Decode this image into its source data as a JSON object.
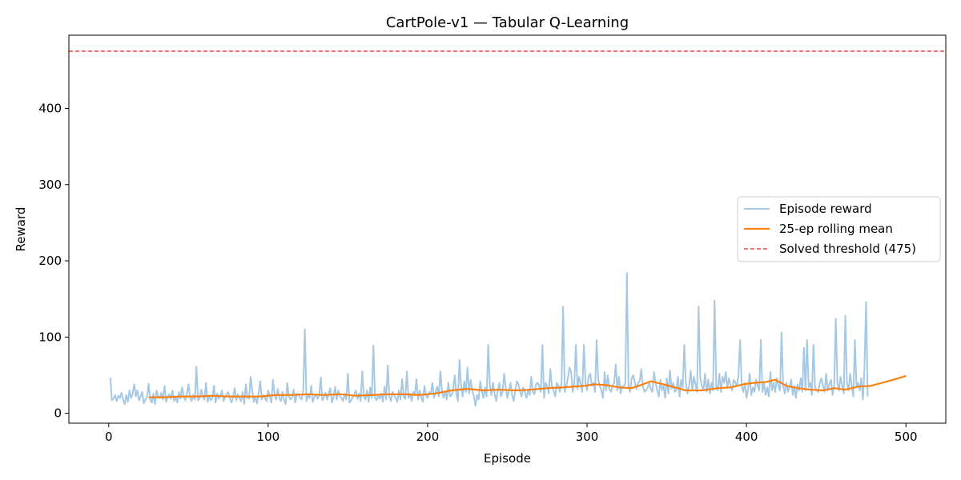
{
  "chart_data": {
    "type": "line",
    "title": "CartPole-v1 — Tabular Q-Learning",
    "xlabel": "Episode",
    "ylabel": "Reward",
    "xlim": [
      -25,
      525
    ],
    "ylim": [
      -13,
      496
    ],
    "xticks": [
      0,
      100,
      200,
      300,
      400,
      500
    ],
    "yticks": [
      0,
      100,
      200,
      300,
      400
    ],
    "grid": false,
    "legend_position": "center-right",
    "threshold": {
      "name": "Solved threshold (475)",
      "value": 475,
      "color": "#e31a1c"
    },
    "series": [
      {
        "name": "Episode reward",
        "color": "#a6c8e3",
        "x_start": 1,
        "values": [
          47,
          17,
          19,
          24,
          16,
          23,
          20,
          27,
          18,
          12,
          24,
          15,
          30,
          20,
          26,
          38,
          22,
          30,
          17,
          22,
          28,
          13,
          18,
          21,
          39,
          18,
          14,
          26,
          12,
          30,
          22,
          20,
          27,
          18,
          36,
          15,
          22,
          25,
          19,
          30,
          16,
          21,
          14,
          28,
          19,
          34,
          22,
          17,
          25,
          38,
          21,
          16,
          24,
          18,
          61,
          17,
          20,
          31,
          22,
          18,
          40,
          15,
          23,
          17,
          20,
          36,
          14,
          26,
          19,
          23,
          30,
          16,
          21,
          25,
          28,
          19,
          14,
          22,
          33,
          17,
          25,
          20,
          16,
          28,
          12,
          38,
          20,
          19,
          48,
          30,
          15,
          22,
          13,
          26,
          42,
          18,
          24,
          20,
          16,
          30,
          22,
          14,
          44,
          25,
          18,
          32,
          20,
          16,
          28,
          17,
          12,
          40,
          22,
          18,
          21,
          31,
          14,
          26,
          25,
          20,
          18,
          30,
          110,
          16,
          24,
          20,
          36,
          15,
          22,
          24,
          19,
          23,
          47,
          17,
          21,
          27,
          18,
          26,
          33,
          14,
          21,
          35,
          18,
          30,
          22,
          20,
          16,
          26,
          18,
          52,
          14,
          17,
          21,
          25,
          30,
          19,
          26,
          16,
          55,
          22,
          18,
          30,
          15,
          34,
          20,
          89,
          21,
          17,
          24,
          19,
          26,
          15,
          35,
          18,
          63,
          22,
          16,
          28,
          24,
          20,
          15,
          30,
          18,
          45,
          22,
          19,
          55,
          20,
          26,
          16,
          28,
          24,
          45,
          18,
          30,
          21,
          15,
          36,
          24,
          20,
          28,
          26,
          40,
          20,
          28,
          35,
          22,
          55,
          30,
          20,
          28,
          18,
          40,
          22,
          24,
          30,
          50,
          26,
          16,
          70,
          36,
          22,
          42,
          28,
          60,
          26,
          44,
          30,
          22,
          10,
          24,
          18,
          42,
          30,
          20,
          34,
          22,
          90,
          38,
          24,
          40,
          26,
          16,
          30,
          40,
          22,
          28,
          52,
          34,
          20,
          30,
          40,
          24,
          16,
          30,
          42,
          38,
          28,
          22,
          34,
          28,
          20,
          30,
          24,
          48,
          28,
          25,
          38,
          40,
          36,
          28,
          90,
          20,
          40,
          36,
          26,
          58,
          34,
          30,
          22,
          40,
          36,
          28,
          40,
          140,
          28,
          36,
          46,
          60,
          54,
          28,
          40,
          90,
          32,
          48,
          38,
          28,
          90,
          40,
          30,
          48,
          52,
          36,
          40,
          28,
          96,
          44,
          36,
          30,
          20,
          54,
          30,
          50,
          32,
          28,
          36,
          40,
          64,
          30,
          48,
          26,
          36,
          34,
          40,
          184,
          36,
          28,
          46,
          50,
          40,
          32,
          40,
          42,
          58,
          36,
          28,
          30,
          34,
          40,
          32,
          28,
          54,
          40,
          30,
          22,
          44,
          30,
          36,
          20,
          46,
          26,
          56,
          32,
          40,
          28,
          30,
          48,
          22,
          44,
          34,
          90,
          40,
          26,
          36,
          56,
          30,
          48,
          38,
          28,
          140,
          46,
          36,
          30,
          52,
          28,
          44,
          26,
          40,
          30,
          148,
          36,
          30,
          52,
          28,
          48,
          40,
          54,
          34,
          46,
          36,
          30,
          44,
          40,
          36,
          50,
          96,
          36,
          28,
          40,
          20,
          32,
          52,
          24,
          34,
          28,
          44,
          36,
          30,
          96,
          28,
          40,
          24,
          34,
          22,
          54,
          30,
          40,
          28,
          46,
          36,
          30,
          106,
          36,
          26,
          40,
          28,
          34,
          44,
          24,
          36,
          20,
          38,
          30,
          46,
          28,
          86,
          30,
          96,
          34,
          40,
          24,
          90,
          34,
          30,
          28,
          40,
          46,
          36,
          28,
          52,
          30,
          38,
          44,
          24,
          36,
          124,
          40,
          30,
          48,
          36,
          26,
          128,
          40,
          30,
          52,
          36,
          22,
          96,
          34,
          40,
          30,
          46,
          18,
          60,
          146,
          22
        ]
      },
      {
        "name": "25-ep rolling mean",
        "color": "#ff7f0e",
        "x": [
          25,
          35,
          45,
          55,
          65,
          75,
          85,
          95,
          105,
          115,
          125,
          135,
          145,
          155,
          165,
          175,
          185,
          195,
          205,
          215,
          225,
          235,
          245,
          255,
          265,
          275,
          285,
          292,
          298,
          305,
          312,
          320,
          328,
          335,
          340,
          348,
          355,
          362,
          372,
          382,
          390,
          398,
          405,
          412,
          418,
          425,
          432,
          440,
          448,
          455,
          462,
          470,
          478,
          485,
          492,
          500
        ],
        "values": [
          21,
          21,
          22,
          22,
          23,
          22,
          22,
          22,
          24,
          24,
          25,
          24,
          25,
          23,
          24,
          25,
          25,
          24,
          26,
          30,
          32,
          30,
          31,
          30,
          31,
          33,
          34,
          35,
          36,
          38,
          37,
          34,
          33,
          38,
          42,
          38,
          34,
          30,
          30,
          33,
          34,
          38,
          40,
          41,
          44,
          36,
          33,
          31,
          30,
          33,
          31,
          35,
          36,
          40,
          44,
          49
        ]
      }
    ]
  }
}
